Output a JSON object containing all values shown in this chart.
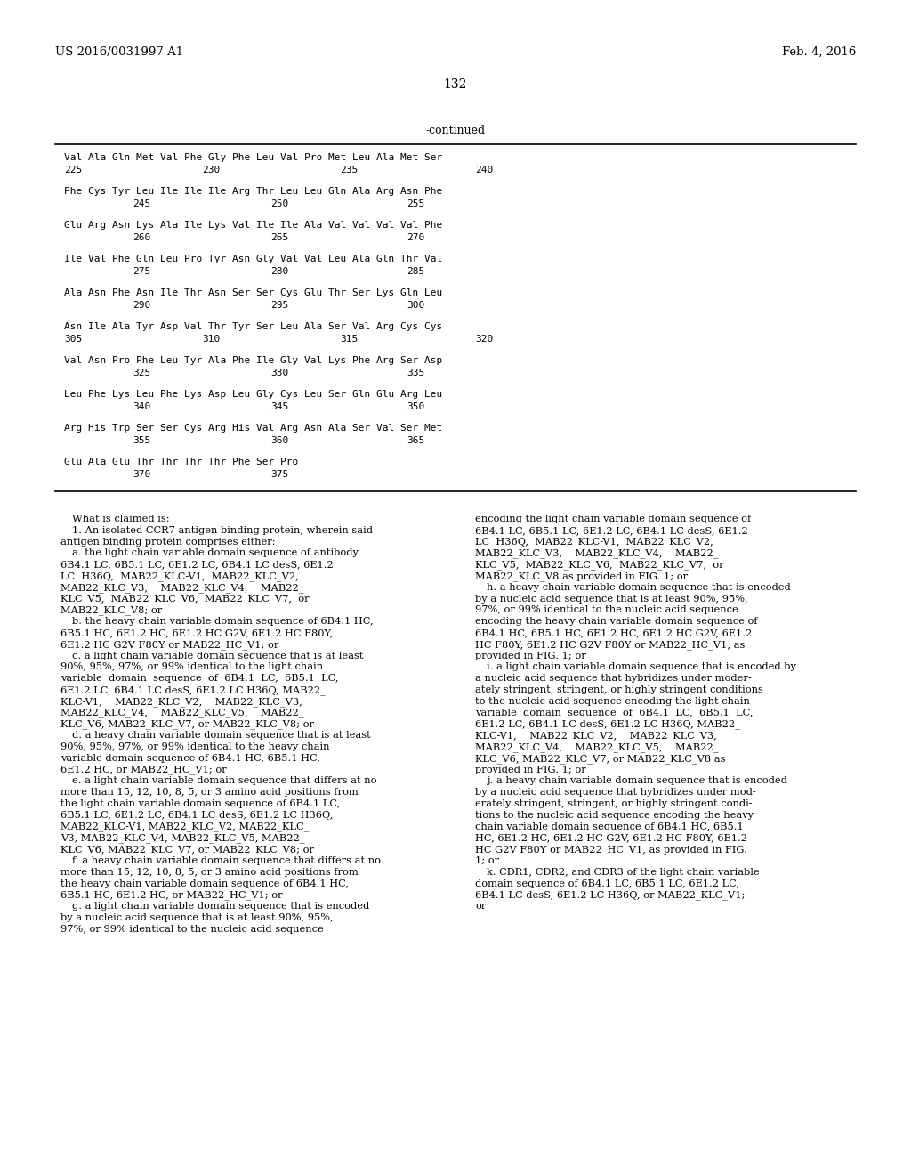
{
  "background_color": "#ffffff",
  "page_number": "132",
  "header_left": "US 2016/0031997 A1",
  "header_right": "Feb. 4, 2016",
  "continued_label": "-continued",
  "rows_data": [
    {
      "aa": "Val Ala Gln Met Val Phe Gly Phe Leu Val Pro Met Leu Ala Met Ser",
      "nums": [
        [
          "225",
          0
        ],
        [
          "230",
          155
        ],
        [
          "235",
          310
        ],
        [
          "240",
          462
        ]
      ]
    },
    {
      "aa": "Phe Cys Tyr Leu Ile Ile Ile Arg Thr Leu Leu Gln Ala Arg Asn Phe",
      "nums": [
        [
          "245",
          77
        ],
        [
          "250",
          232
        ],
        [
          "255",
          385
        ]
      ]
    },
    {
      "aa": "Glu Arg Asn Lys Ala Ile Lys Val Ile Ile Ala Val Val Val Val Phe",
      "nums": [
        [
          "260",
          77
        ],
        [
          "265",
          232
        ],
        [
          "270",
          385
        ]
      ]
    },
    {
      "aa": "Ile Val Phe Gln Leu Pro Tyr Asn Gly Val Val Leu Ala Gln Thr Val",
      "nums": [
        [
          "275",
          77
        ],
        [
          "280",
          232
        ],
        [
          "285",
          385
        ]
      ]
    },
    {
      "aa": "Ala Asn Phe Asn Ile Thr Asn Ser Ser Cys Glu Thr Ser Lys Gln Leu",
      "nums": [
        [
          "290",
          77
        ],
        [
          "295",
          232
        ],
        [
          "300",
          385
        ]
      ]
    },
    {
      "aa": "Asn Ile Ala Tyr Asp Val Thr Tyr Ser Leu Ala Ser Val Arg Cys Cys",
      "nums": [
        [
          "305",
          0
        ],
        [
          "310",
          155
        ],
        [
          "315",
          310
        ],
        [
          "320",
          462
        ]
      ]
    },
    {
      "aa": "Val Asn Pro Phe Leu Tyr Ala Phe Ile Gly Val Lys Phe Arg Ser Asp",
      "nums": [
        [
          "325",
          77
        ],
        [
          "330",
          232
        ],
        [
          "335",
          385
        ]
      ]
    },
    {
      "aa": "Leu Phe Lys Leu Phe Lys Asp Leu Gly Cys Leu Ser Gln Glu Arg Leu",
      "nums": [
        [
          "340",
          77
        ],
        [
          "345",
          232
        ],
        [
          "350",
          385
        ]
      ]
    },
    {
      "aa": "Arg His Trp Ser Ser Cys Arg His Val Arg Asn Ala Ser Val Ser Met",
      "nums": [
        [
          "355",
          77
        ],
        [
          "360",
          232
        ],
        [
          "365",
          385
        ]
      ]
    },
    {
      "aa": "Glu Ala Glu Thr Thr Thr Thr Phe Ser Pro",
      "nums": [
        [
          "370",
          77
        ],
        [
          "375",
          232
        ]
      ]
    }
  ],
  "left_col_lines": [
    "    What is claimed is:",
    "    1. An isolated CCR7 antigen binding protein, wherein said",
    "antigen binding protein comprises either:",
    "    a. the light chain variable domain sequence of antibody",
    "6B4.1 LC, 6B5.1 LC, 6E1.2 LC, 6B4.1 LC desS, 6E1.2",
    "LC  H36Q,  MAB22_KLC-V1,  MAB22_KLC_V2,",
    "MAB22_KLC_V3,    MAB22_KLC_V4,    MAB22_",
    "KLC_V5,  MAB22_KLC_V6,  MAB22_KLC_V7,  or",
    "MAB22_KLC_V8; or",
    "    b. the heavy chain variable domain sequence of 6B4.1 HC,",
    "6B5.1 HC, 6E1.2 HC, 6E1.2 HC G2V, 6E1.2 HC F80Y,",
    "6E1.2 HC G2V F80Y or MAB22_HC_V1; or",
    "    c. a light chain variable domain sequence that is at least",
    "90%, 95%, 97%, or 99% identical to the light chain",
    "variable  domain  sequence  of  6B4.1  LC,  6B5.1  LC,",
    "6E1.2 LC, 6B4.1 LC desS, 6E1.2 LC H36Q, MAB22_",
    "KLC-V1,    MAB22_KLC_V2,    MAB22_KLC_V3,",
    "MAB22_KLC_V4,    MAB22_KLC_V5,    MAB22_",
    "KLC_V6, MAB22_KLC_V7, or MAB22_KLC_V8; or",
    "    d. a heavy chain variable domain sequence that is at least",
    "90%, 95%, 97%, or 99% identical to the heavy chain",
    "variable domain sequence of 6B4.1 HC, 6B5.1 HC,",
    "6E1.2 HC, or MAB22_HC_V1; or",
    "    e. a light chain variable domain sequence that differs at no",
    "more than 15, 12, 10, 8, 5, or 3 amino acid positions from",
    "the light chain variable domain sequence of 6B4.1 LC,",
    "6B5.1 LC, 6E1.2 LC, 6B4.1 LC desS, 6E1.2 LC H36Q,",
    "MAB22_KLC-V1, MAB22_KLC_V2, MAB22_KLC_",
    "V3, MAB22_KLC_V4, MAB22_KLC_V5, MAB22_",
    "KLC_V6, MAB22_KLC_V7, or MAB22_KLC_V8; or",
    "    f. a heavy chain variable domain sequence that differs at no",
    "more than 15, 12, 10, 8, 5, or 3 amino acid positions from",
    "the heavy chain variable domain sequence of 6B4.1 HC,",
    "6B5.1 HC, 6E1.2 HC, or MAB22_HC_V1; or",
    "    g. a light chain variable domain sequence that is encoded",
    "by a nucleic acid sequence that is at least 90%, 95%,",
    "97%, or 99% identical to the nucleic acid sequence"
  ],
  "right_col_lines": [
    "encoding the light chain variable domain sequence of",
    "6B4.1 LC, 6B5.1 LC, 6E1.2 LC, 6B4.1 LC desS, 6E1.2",
    "LC  H36Q,  MAB22_KLC-V1,  MAB22_KLC_V2,",
    "MAB22_KLC_V3,    MAB22_KLC_V4,    MAB22_",
    "KLC_V5,  MAB22_KLC_V6,  MAB22_KLC_V7,  or",
    "MAB22_KLC_V8 as provided in FIG. 1; or",
    "    h. a heavy chain variable domain sequence that is encoded",
    "by a nucleic acid sequence that is at least 90%, 95%,",
    "97%, or 99% identical to the nucleic acid sequence",
    "encoding the heavy chain variable domain sequence of",
    "6B4.1 HC, 6B5.1 HC, 6E1.2 HC, 6E1.2 HC G2V, 6E1.2",
    "HC F80Y, 6E1.2 HC G2V F80Y or MAB22_HC_V1, as",
    "provided in FIG. 1; or",
    "    i. a light chain variable domain sequence that is encoded by",
    "a nucleic acid sequence that hybridizes under moder-",
    "ately stringent, stringent, or highly stringent conditions",
    "to the nucleic acid sequence encoding the light chain",
    "variable  domain  sequence  of  6B4.1  LC,  6B5.1  LC,",
    "6E1.2 LC, 6B4.1 LC desS, 6E1.2 LC H36Q, MAB22_",
    "KLC-V1,    MAB22_KLC_V2,    MAB22_KLC_V3,",
    "MAB22_KLC_V4,    MAB22_KLC_V5,    MAB22_",
    "KLC_V6, MAB22_KLC_V7, or MAB22_KLC_V8 as",
    "provided in FIG. 1; or",
    "    j. a heavy chain variable domain sequence that is encoded",
    "by a nucleic acid sequence that hybridizes under mod-",
    "erately stringent, stringent, or highly stringent condi-",
    "tions to the nucleic acid sequence encoding the heavy",
    "chain variable domain sequence of 6B4.1 HC, 6B5.1",
    "HC, 6E1.2 HC, 6E1.2 HC G2V, 6E1.2 HC F80Y, 6E1.2",
    "HC G2V F80Y or MAB22_HC_V1, as provided in FIG.",
    "1; or",
    "    k. CDR1, CDR2, and CDR3 of the light chain variable",
    "domain sequence of 6B4.1 LC, 6B5.1 LC, 6E1.2 LC,",
    "6B4.1 LC desS, 6E1.2 LC H36Q, or MAB22_KLC_V1;",
    "or"
  ]
}
